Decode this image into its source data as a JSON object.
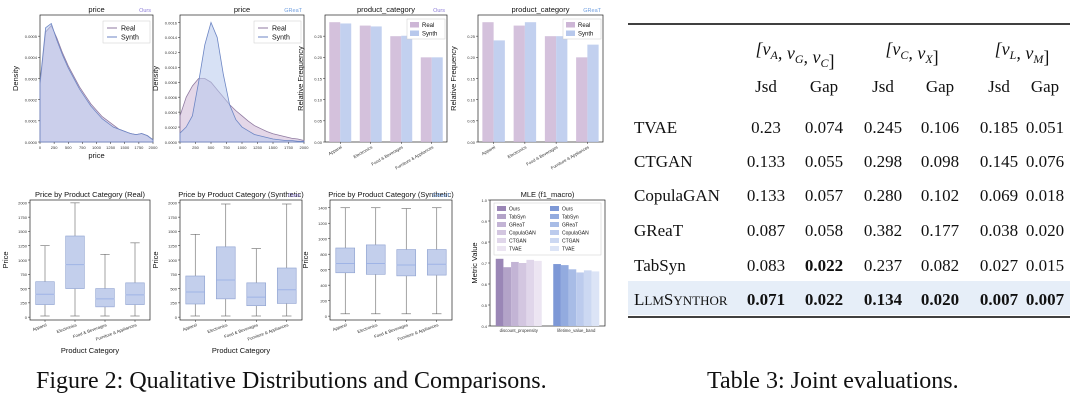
{
  "figure": {
    "caption": "Figure 2: Qualitative Distributions and Comparisons.",
    "panels": [
      {
        "title": "price",
        "tag": "Ours",
        "xlabel": "price",
        "ylabel": "Density",
        "legend": [
          "Real",
          "Synth"
        ]
      },
      {
        "title": "price",
        "tag": "GReaT",
        "xlabel": "",
        "ylabel": "Density",
        "legend": [
          "Real",
          "Synth"
        ]
      },
      {
        "title": "product_category",
        "tag": "Ours",
        "xlabel": "",
        "ylabel": "Relative Frequency",
        "legend": [
          "Real",
          "Synth"
        ]
      },
      {
        "title": "product_category",
        "tag": "GReaT",
        "xlabel": "",
        "ylabel": "Relative Frequency",
        "legend": [
          "Real",
          "Synth"
        ]
      },
      {
        "title": "Price by Product Category (Real)",
        "tag": "",
        "xlabel": "Product Category",
        "ylabel": "Price"
      },
      {
        "title": "Price by Product Category (Synthetic)",
        "tag": "Ours",
        "xlabel": "Product Category",
        "ylabel": "Price"
      },
      {
        "title": "Price by Product Category (Synthetic)",
        "tag": "GReaT",
        "xlabel": "",
        "ylabel": "Price"
      },
      {
        "title": "MLE (f1_macro)",
        "tag": "",
        "xlabel": "",
        "ylabel": "Metric Value",
        "legend": [
          "Ours",
          "TabSyn",
          "GReaT",
          "CopulaGAN",
          "CTGAN",
          "TVAE"
        ]
      }
    ]
  },
  "chart_data": [
    {
      "type": "area",
      "title": "price",
      "tag": "Ours",
      "xlabel": "price",
      "ylabel": "Density",
      "xlim": [
        0,
        2000
      ],
      "ylim": [
        0,
        0.0006
      ],
      "xticks": [
        0,
        250,
        500,
        750,
        1000,
        1250,
        1500,
        1750,
        2000
      ],
      "yticks": [
        "0.0000",
        "0.0001",
        "0.0002",
        "0.0003",
        "0.0004",
        "0.0005"
      ],
      "series": [
        {
          "name": "Real",
          "x": [
            0,
            100,
            200,
            300,
            400,
            500,
            600,
            700,
            800,
            900,
            1000,
            1100,
            1200,
            1300,
            1400,
            1500,
            1600,
            1700,
            1800,
            1900,
            2000
          ],
          "y": [
            0.00027,
            0.00052,
            0.00055,
            0.00049,
            0.00042,
            0.00036,
            0.00031,
            0.00026,
            0.00022,
            0.00018,
            0.00015,
            0.00012,
            0.0001,
            8e-05,
            6e-05,
            5e-05,
            4e-05,
            3.5e-05,
            4e-05,
            3e-05,
            1e-05
          ]
        },
        {
          "name": "Synth",
          "x": [
            0,
            100,
            200,
            300,
            400,
            500,
            600,
            700,
            800,
            900,
            1000,
            1100,
            1200,
            1300,
            1400,
            1500,
            1600,
            1700,
            1800,
            1900,
            2000
          ],
          "y": [
            0.00028,
            0.00054,
            0.00056,
            0.00048,
            0.00041,
            0.00035,
            0.0003,
            0.00025,
            0.00021,
            0.00017,
            0.00014,
            0.00011,
            9e-05,
            7e-05,
            6e-05,
            5e-05,
            4e-05,
            3.5e-05,
            4e-05,
            3e-05,
            1e-05
          ]
        }
      ]
    },
    {
      "type": "area",
      "title": "price",
      "tag": "GReaT",
      "xlabel": "",
      "ylabel": "Density",
      "xlim": [
        0,
        2000
      ],
      "ylim": [
        0,
        0.0017
      ],
      "xticks": [
        0,
        250,
        500,
        750,
        1000,
        1250,
        1500,
        1750,
        2000
      ],
      "yticks": [
        "0.0000",
        "0.0002",
        "0.0004",
        "0.0006",
        "0.0008",
        "0.0010",
        "0.0012",
        "0.0014",
        "0.0016"
      ],
      "series": [
        {
          "name": "Real",
          "x": [
            0,
            100,
            200,
            300,
            400,
            500,
            600,
            700,
            800,
            900,
            1000,
            1100,
            1200,
            1300,
            1400,
            1500,
            1600,
            1700,
            1800,
            1900,
            2000
          ],
          "y": [
            0.00035,
            0.0006,
            0.00075,
            0.00085,
            0.00085,
            0.0008,
            0.0007,
            0.0006,
            0.0005,
            0.00042,
            0.00035,
            0.00028,
            0.00022,
            0.00018,
            0.00014,
            0.00011,
            9e-05,
            7e-05,
            5e-05,
            4e-05,
            2e-05
          ]
        },
        {
          "name": "Synth",
          "x": [
            0,
            100,
            200,
            300,
            400,
            500,
            600,
            700,
            800,
            900,
            1000,
            1100,
            1200,
            1300,
            1400,
            1500,
            1600,
            1700,
            1800,
            1900,
            2000
          ],
          "y": [
            0.00012,
            0.0002,
            0.00035,
            0.0008,
            0.0013,
            0.0016,
            0.0014,
            0.0009,
            0.0005,
            0.0003,
            0.0002,
            0.00015,
            0.0001,
            8e-05,
            6e-05,
            4e-05,
            3e-05,
            2e-05,
            2e-05,
            1e-05,
            1e-05
          ]
        }
      ]
    },
    {
      "type": "bar",
      "title": "product_category",
      "tag": "Ours",
      "xlabel": "",
      "ylabel": "Relative Frequency",
      "ylim": [
        0,
        0.3
      ],
      "yticks": [
        "0.00",
        "0.05",
        "0.10",
        "0.15",
        "0.20",
        "0.25"
      ],
      "categories": [
        "Apparel",
        "Electronics",
        "Food & Beverages",
        "Furniture & Appliances"
      ],
      "series": [
        {
          "name": "Real",
          "values": [
            0.283,
            0.275,
            0.25,
            0.2
          ]
        },
        {
          "name": "Synth",
          "values": [
            0.28,
            0.273,
            0.251,
            0.2
          ]
        }
      ]
    },
    {
      "type": "bar",
      "title": "product_category",
      "tag": "GReaT",
      "xlabel": "",
      "ylabel": "Relative Frequency",
      "ylim": [
        0,
        0.3
      ],
      "yticks": [
        "0.00",
        "0.05",
        "0.10",
        "0.15",
        "0.20",
        "0.25"
      ],
      "categories": [
        "Apparel",
        "Electronics",
        "Food & Beverages",
        "Furniture & Appliances"
      ],
      "series": [
        {
          "name": "Real",
          "values": [
            0.283,
            0.275,
            0.25,
            0.2
          ]
        },
        {
          "name": "Synth",
          "values": [
            0.24,
            0.283,
            0.25,
            0.23
          ]
        }
      ]
    },
    {
      "type": "box",
      "title": "Price by Product Category (Real)",
      "tag": "",
      "xlabel": "Product Category",
      "ylabel": "Price",
      "ylim": [
        -50,
        2050
      ],
      "yticks": [
        0,
        250,
        500,
        750,
        1000,
        1250,
        1500,
        1750,
        2000
      ],
      "categories": [
        "Apparel",
        "Electronics",
        "Food & Beverages",
        "Furniture & Appliances"
      ],
      "boxes": [
        {
          "min": 20,
          "q1": 220,
          "median": 400,
          "q3": 620,
          "max": 1250
        },
        {
          "min": 20,
          "q1": 500,
          "median": 920,
          "q3": 1420,
          "max": 2000
        },
        {
          "min": 20,
          "q1": 180,
          "median": 320,
          "q3": 500,
          "max": 1100
        },
        {
          "min": 20,
          "q1": 220,
          "median": 390,
          "q3": 600,
          "max": 1300
        }
      ]
    },
    {
      "type": "box",
      "title": "Price by Product Category (Synthetic)",
      "tag": "Ours",
      "xlabel": "Product Category",
      "ylabel": "Price",
      "ylim": [
        -50,
        2050
      ],
      "yticks": [
        0,
        250,
        500,
        750,
        1000,
        1250,
        1500,
        1750,
        2000
      ],
      "categories": [
        "Apparel",
        "Electronics",
        "Food & Beverages",
        "Furniture & Appliances"
      ],
      "boxes": [
        {
          "min": 20,
          "q1": 230,
          "median": 440,
          "q3": 720,
          "max": 1450
        },
        {
          "min": 20,
          "q1": 320,
          "median": 650,
          "q3": 1230,
          "max": 1980
        },
        {
          "min": 20,
          "q1": 200,
          "median": 350,
          "q3": 600,
          "max": 1200
        },
        {
          "min": 20,
          "q1": 240,
          "median": 480,
          "q3": 860,
          "max": 1980
        }
      ]
    },
    {
      "type": "box",
      "title": "Price by Product Category (Synthetic)",
      "tag": "GReaT",
      "xlabel": "",
      "ylabel": "Price",
      "ylim": [
        -50,
        1500
      ],
      "yticks": [
        0,
        200,
        400,
        600,
        800,
        1000,
        1200,
        1400
      ],
      "categories": [
        "Apparel",
        "Electronics",
        "Food & Beverages",
        "Furniture & Appliances"
      ],
      "boxes": [
        {
          "min": 30,
          "q1": 560,
          "median": 680,
          "q3": 880,
          "max": 1400
        },
        {
          "min": 30,
          "q1": 540,
          "median": 680,
          "q3": 920,
          "max": 1400
        },
        {
          "min": 30,
          "q1": 520,
          "median": 660,
          "q3": 860,
          "max": 1390
        },
        {
          "min": 30,
          "q1": 530,
          "median": 670,
          "q3": 860,
          "max": 1400
        }
      ]
    },
    {
      "type": "bar",
      "title": "MLE (f1_macro)",
      "tag": "",
      "xlabel": "",
      "ylabel": "Metric Value",
      "ylim": [
        0.4,
        1.0
      ],
      "yticks": [
        "0.4",
        "0.5",
        "0.6",
        "0.7",
        "0.8",
        "0.9",
        "1.0"
      ],
      "categories": [
        "discount_propensity",
        "lifetime_value_band"
      ],
      "series": [
        {
          "name": "Ours",
          "values": [
            0.72,
            0.695
          ]
        },
        {
          "name": "TabSyn",
          "values": [
            0.68,
            0.69
          ]
        },
        {
          "name": "GReaT",
          "values": [
            0.705,
            0.67
          ]
        },
        {
          "name": "CopulaGAN",
          "values": [
            0.7,
            0.655
          ]
        },
        {
          "name": "CTGAN",
          "values": [
            0.715,
            0.665
          ]
        },
        {
          "name": "TVAE",
          "values": [
            0.71,
            0.66
          ]
        }
      ]
    }
  ],
  "table": {
    "caption": "Table 3: Joint evaluations.",
    "groups": [
      "[v_A, v_G, v_C]",
      "[v_C, v_X]",
      "[v_L, v_M]"
    ],
    "subheaders": [
      "Jsd",
      "Gap",
      "Jsd",
      "Gap",
      "Jsd",
      "Gap"
    ],
    "rows": [
      {
        "name": "TVAE",
        "values": [
          "0.23",
          "0.074",
          "0.245",
          "0.106",
          "0.185",
          "0.051"
        ],
        "bold": [
          false,
          false,
          false,
          false,
          false,
          false
        ]
      },
      {
        "name": "CTGAN",
        "values": [
          "0.133",
          "0.055",
          "0.298",
          "0.098",
          "0.145",
          "0.076"
        ],
        "bold": [
          false,
          false,
          false,
          false,
          false,
          false
        ]
      },
      {
        "name": "CopulaGAN",
        "values": [
          "0.133",
          "0.057",
          "0.280",
          "0.102",
          "0.069",
          "0.018"
        ],
        "bold": [
          false,
          false,
          false,
          false,
          false,
          false
        ]
      },
      {
        "name": "GReaT",
        "values": [
          "0.087",
          "0.058",
          "0.382",
          "0.177",
          "0.038",
          "0.020"
        ],
        "bold": [
          false,
          false,
          false,
          false,
          false,
          false
        ]
      },
      {
        "name": "TabSyn",
        "values": [
          "0.083",
          "0.022",
          "0.237",
          "0.082",
          "0.027",
          "0.015"
        ],
        "bold": [
          false,
          true,
          false,
          false,
          false,
          false
        ]
      },
      {
        "name": "LlmSynthor",
        "values": [
          "0.071",
          "0.022",
          "0.134",
          "0.020",
          "0.007",
          "0.007"
        ],
        "bold": [
          true,
          true,
          true,
          true,
          true,
          true
        ]
      }
    ],
    "highlight_row": "LlmSynthor"
  },
  "colors": {
    "real": "#cdb6d6",
    "synth": "#b7c8ec",
    "real_line": "#8f7aa0",
    "synth_line": "#6d86c4",
    "tag_ours": "#8c7bd8",
    "tag_great": "#6f9ee0",
    "box": "#c3cfec",
    "box_edge": "#8da0cf",
    "median": "#9fb4e6",
    "highlight": "#e6eef8",
    "mle": [
      "#9a86b6",
      "#b3a3c8",
      "#c3b4d5",
      "#d3c6e0",
      "#e0d6ea",
      "#ece5f2"
    ],
    "mle2": [
      "#7d98d6",
      "#93abdf",
      "#a8bce6",
      "#bccbed",
      "#ccd8f2",
      "#dce4f6"
    ]
  }
}
